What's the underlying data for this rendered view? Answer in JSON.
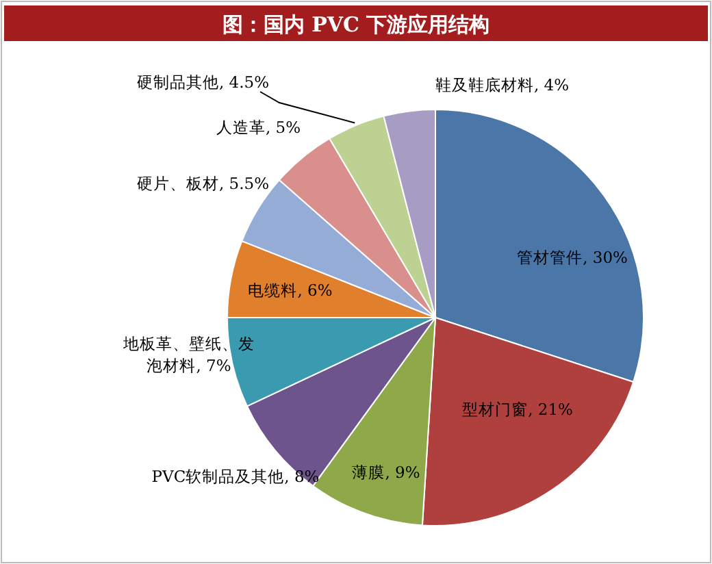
{
  "chart_data": {
    "type": "pie",
    "title": "图：国内 PVC 下游应用结构",
    "categories": [
      "管材管件",
      "型材门窗",
      "薄膜",
      "PVC软制品及其他",
      "地板革、壁纸、发泡材料",
      "电缆料",
      "硬片、板材",
      "人造革",
      "硬制品其他",
      "鞋及鞋底材料"
    ],
    "values": [
      30,
      21,
      9,
      8,
      7,
      6,
      5.5,
      5,
      4.5,
      4
    ],
    "value_labels": [
      "30%",
      "21%",
      "9%",
      "8%",
      "7%",
      "6%",
      "5.5%",
      "5%",
      "4.5%",
      "4%"
    ],
    "colors": [
      "#4a76a8",
      "#b0403d",
      "#8fa84a",
      "#6e548d",
      "#3a9bb0",
      "#e07f2c",
      "#95acd6",
      "#d98f8c",
      "#bcd192",
      "#a79cc3"
    ]
  }
}
